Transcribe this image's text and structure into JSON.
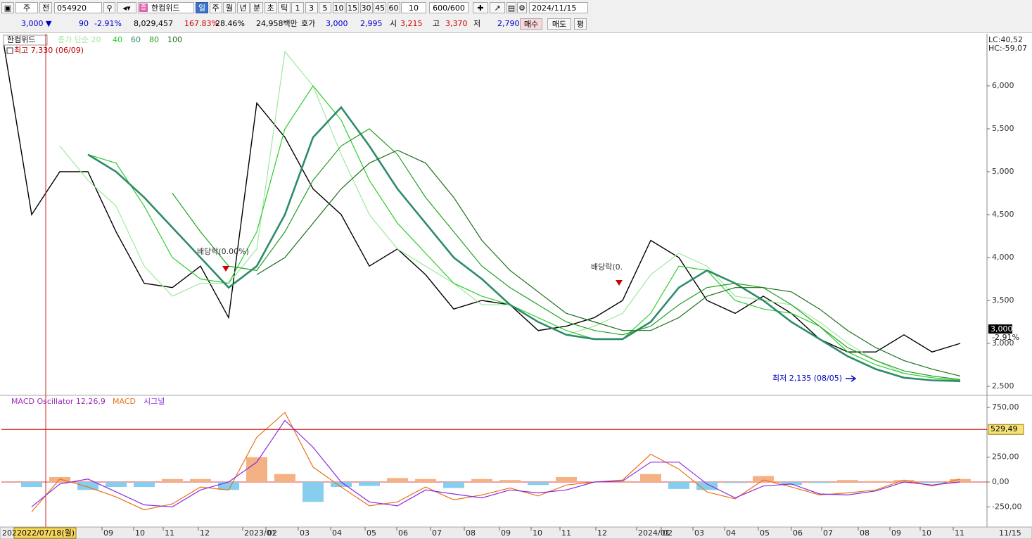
{
  "toolbar": {
    "row1": {
      "market": "주",
      "scope": "전",
      "code": "054920",
      "name": "한컴위드",
      "periods": [
        "일",
        "주",
        "월",
        "년",
        "분",
        "초",
        "틱"
      ],
      "intervals": [
        "1",
        "3",
        "5",
        "10",
        "15",
        "30",
        "45",
        "60"
      ],
      "interval_input": "10",
      "count": "600/600",
      "date": "2024/11/15"
    },
    "row2": {
      "price": "3,000 ▼",
      "change": "90",
      "change_pct": "-2.91%",
      "volume": "8,029,457",
      "volume_ratio": "167.83%",
      "turnover": "28.46%",
      "amount": "24,958백만",
      "ask_label": "호가",
      "ask": "3,000",
      "bid": "2,995",
      "open_label": "시",
      "open": "3,215",
      "high_label": "고",
      "high": "3,370",
      "low_label": "저",
      "low": "2,790",
      "buy": "매수",
      "sell": "매도",
      "avg": "평"
    }
  },
  "chart_data": [
    {
      "type": "line",
      "xlim": [
        0,
        34
      ],
      "ylim": [
        2410,
        6590
      ],
      "xticks": [
        {
          "value": 3.5,
          "label": "09"
        },
        {
          "value": 4.625,
          "label": "10"
        },
        {
          "value": 5.675,
          "label": "11"
        },
        {
          "value": 6.925,
          "label": "12"
        },
        {
          "value": 8.5,
          "label": "2023/01"
        },
        {
          "value": 9.325,
          "label": "02"
        },
        {
          "value": 10.475,
          "label": "03"
        },
        {
          "value": 11.625,
          "label": "04"
        },
        {
          "value": 12.85,
          "label": "05"
        },
        {
          "value": 13.975,
          "label": "06"
        },
        {
          "value": 15.175,
          "label": "07"
        },
        {
          "value": 16.375,
          "label": "08"
        },
        {
          "value": 17.625,
          "label": "09"
        },
        {
          "value": 18.75,
          "label": "10"
        },
        {
          "value": 19.775,
          "label": "11"
        },
        {
          "value": 21.05,
          "label": "12"
        },
        {
          "value": 22.5,
          "label": "2024/01"
        },
        {
          "value": 23.375,
          "label": "02"
        },
        {
          "value": 24.5,
          "label": "03"
        },
        {
          "value": 25.625,
          "label": "04"
        },
        {
          "value": 26.825,
          "label": "05"
        },
        {
          "value": 28,
          "label": "06"
        },
        {
          "value": 29.075,
          "label": "07"
        },
        {
          "value": 30.375,
          "label": "08"
        },
        {
          "value": 31.5,
          "label": "09"
        },
        {
          "value": 32.575,
          "label": "10"
        },
        {
          "value": 33.75,
          "label": "11"
        }
      ],
      "yticks": [
        {
          "value": 2500,
          "label": "2,500"
        },
        {
          "value": 3000,
          "label": "3,000"
        },
        {
          "value": 3500,
          "label": "3,500"
        },
        {
          "value": 4000,
          "label": "4,000"
        },
        {
          "value": 4500,
          "label": "4,500"
        },
        {
          "value": 5000,
          "label": "5,000"
        },
        {
          "value": 5500,
          "label": "5,500"
        },
        {
          "value": 6000,
          "label": "6,000"
        }
      ],
      "series": [
        {
          "name": "한컴위드",
          "color": "#000000",
          "values": [
            6500,
            4500,
            5000,
            5000,
            4300,
            3700,
            3650,
            3900,
            3300,
            5800,
            5400,
            4800,
            4500,
            3900,
            4100,
            3800,
            3400,
            3500,
            3450,
            3150,
            3200,
            3300,
            3500,
            4200,
            4000,
            3500,
            3350,
            3550,
            3350,
            3050,
            2900,
            2900,
            3100,
            2900,
            3000
          ]
        },
        {
          "name": "종가 단순 20",
          "color": "#9fe89f",
          "values": [
            null,
            null,
            5300,
            4900,
            4600,
            3900,
            3550,
            3700,
            3700,
            4100,
            6400,
            6000,
            5200,
            4500,
            4100,
            3900,
            3700,
            3450,
            3450,
            3250,
            3100,
            3200,
            3350,
            3800,
            4050,
            3900,
            3550,
            3500,
            3450,
            3250,
            3000,
            2800,
            2650,
            2600,
            2550
          ]
        },
        {
          "name": "40",
          "color": "#2ecc2e",
          "values": [
            null,
            null,
            null,
            5200,
            5100,
            4600,
            4000,
            3750,
            3700,
            4300,
            5500,
            6000,
            5600,
            4900,
            4400,
            4050,
            3700,
            3550,
            3450,
            3300,
            3150,
            3050,
            3050,
            3350,
            3900,
            3850,
            3500,
            3400,
            3350,
            3200,
            2900,
            2750,
            2650,
            2600,
            2570
          ]
        },
        {
          "name": "60",
          "color": "#2e8b6a",
          "values": [
            null,
            null,
            null,
            5200,
            5000,
            4700,
            4350,
            4000,
            3650,
            3900,
            4500,
            5400,
            5750,
            5300,
            4800,
            4400,
            4000,
            3750,
            3450,
            3250,
            3100,
            3050,
            3050,
            3250,
            3650,
            3850,
            3700,
            3500,
            3250,
            3050,
            2850,
            2700,
            2600,
            2570,
            2560
          ]
        },
        {
          "name": "80",
          "color": "#20a020",
          "values": [
            null,
            null,
            null,
            null,
            null,
            null,
            4750,
            4300,
            3900,
            3850,
            4300,
            4900,
            5300,
            5500,
            5200,
            4700,
            4300,
            3900,
            3650,
            3450,
            3250,
            3150,
            3100,
            3200,
            3450,
            3650,
            3700,
            3650,
            3450,
            3200,
            2950,
            2800,
            2680,
            2620,
            2580
          ]
        },
        {
          "name": "100",
          "color": "#1a6e1a",
          "values": [
            null,
            null,
            null,
            null,
            null,
            null,
            null,
            null,
            null,
            3800,
            4000,
            4400,
            4800,
            5100,
            5250,
            5100,
            4700,
            4200,
            3850,
            3600,
            3350,
            3250,
            3150,
            3150,
            3300,
            3550,
            3650,
            3650,
            3600,
            3400,
            3150,
            2950,
            2800,
            2700,
            2620
          ]
        }
      ],
      "annotations": [
        "최고 7,330 (06/09)",
        "배당락(0.00%)",
        "배당락(0.",
        "최저 2,135 (08/05)"
      ],
      "corner_labels": [
        "LC:40,52",
        "HC:-59,07"
      ],
      "last_price": {
        "value": 3000,
        "label": "3,000",
        "change": "-2.91%"
      },
      "cursor": "2022/07/18(월)"
    },
    {
      "type": "line",
      "title": "MACD Oscillator 12,26,9",
      "xlim": [
        0,
        34
      ],
      "ylim": [
        -446,
        864
      ],
      "yticks": [
        {
          "value": -250,
          "label": "-250,00"
        },
        {
          "value": 0,
          "label": "0,00"
        },
        {
          "value": 250,
          "label": "250,00"
        },
        {
          "value": 750,
          "label": "750,00"
        }
      ],
      "ref_line": {
        "value": 529.49,
        "label": "529,49",
        "color": "#cc0000"
      },
      "zero_color": "#cc0000",
      "series": [
        {
          "name": "MACD",
          "color": "#e8731a",
          "values": [
            null,
            -300,
            30,
            -50,
            -150,
            -280,
            -220,
            -50,
            -80,
            450,
            700,
            150,
            -50,
            -240,
            -200,
            -50,
            -180,
            -130,
            -60,
            -140,
            -30,
            0,
            20,
            280,
            130,
            -100,
            -170,
            20,
            -50,
            -130,
            -110,
            -80,
            20,
            -40,
            30
          ]
        },
        {
          "name": "시그널",
          "color": "#8a2be2",
          "values": [
            null,
            -250,
            -20,
            30,
            -100,
            -230,
            -250,
            -80,
            0,
            200,
            620,
            350,
            0,
            -200,
            -240,
            -80,
            -120,
            -160,
            -80,
            -110,
            -80,
            0,
            10,
            200,
            200,
            -20,
            -160,
            -40,
            -20,
            -120,
            -130,
            -90,
            0,
            -30,
            0
          ]
        },
        {
          "name": "MACD Oscillator 12,26,9",
          "mark": "bar",
          "color": "#f4b183",
          "negative_color": "#87cdee",
          "values": [
            null,
            -50,
            50,
            -80,
            -50,
            -50,
            30,
            30,
            -80,
            250,
            80,
            -200,
            -50,
            -40,
            40,
            30,
            -60,
            30,
            20,
            -30,
            50,
            0,
            10,
            80,
            -70,
            -80,
            -10,
            60,
            -30,
            -10,
            20,
            10,
            20,
            -10,
            30
          ]
        }
      ],
      "x_start_label": "202",
      "x_end_label": "11/15"
    }
  ]
}
